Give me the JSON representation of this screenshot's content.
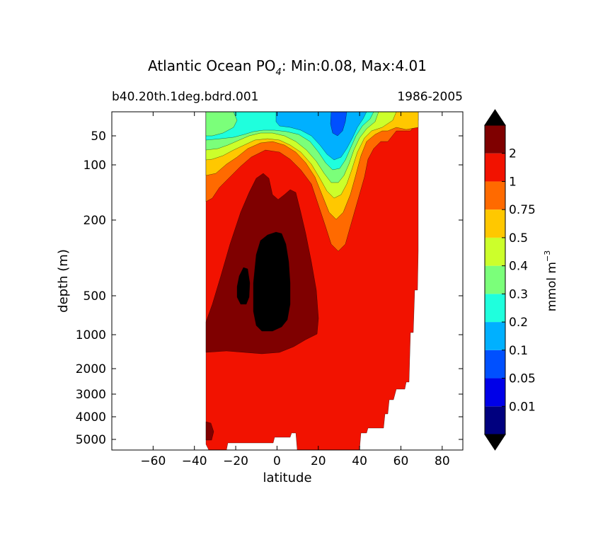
{
  "chart_data": {
    "type": "heatmap",
    "title": {
      "prefix": "Atlantic Ocean PO",
      "subscript": "4",
      "suffix": ": Min:0.08, Max:4.01"
    },
    "subtitle_left": "b40.20th.1deg.bdrd.001",
    "subtitle_right": "1986-2005",
    "xlabel": "latitude",
    "ylabel": "depth (m)",
    "xlim": [
      -80,
      90
    ],
    "xticks": [
      -60,
      -40,
      -20,
      0,
      20,
      40,
      60,
      80
    ],
    "xtick_labels": [
      "−60",
      "−40",
      "−20",
      "0",
      "20",
      "40",
      "60",
      "80"
    ],
    "y_scale": "nonlinear depth (approx. log)",
    "yticks": [
      {
        "value": 50,
        "label": "50"
      },
      {
        "value": 100,
        "label": "100"
      },
      {
        "value": 200,
        "label": "200"
      },
      {
        "value": 500,
        "label": "500"
      },
      {
        "value": 1000,
        "label": "1000"
      },
      {
        "value": 2000,
        "label": "2000"
      },
      {
        "value": 3000,
        "label": "3000"
      },
      {
        "value": 4000,
        "label": "4000"
      },
      {
        "value": 5000,
        "label": "5000"
      }
    ],
    "data_lat_range": [
      -34,
      68
    ],
    "colorbar": {
      "label_main": "mmol m",
      "label_exp": "−3",
      "levels": [
        "0.01",
        "0.05",
        "0.1",
        "0.2",
        "0.3",
        "0.4",
        "0.5",
        "0.75",
        "1",
        "2"
      ],
      "colors": [
        "#00007f",
        "#0000e8",
        "#0050ff",
        "#00b0ff",
        "#1fffdd",
        "#7bff7a",
        "#ccff2b",
        "#ffc800",
        "#ff6a00",
        "#f21200",
        "#7f0000"
      ],
      "under_color": "#000000",
      "over_color": "#000000"
    },
    "fill_levels": {
      "band_030": "#1fffdd",
      "band_040": "#7bff7a",
      "band_050": "#ccff2b",
      "band_075": "#ffc800",
      "band_100": "#ff6a00",
      "band_200": "#f21200",
      "band_over2": "#7f0000",
      "band_max": "#000000",
      "band_020": "#00b0ff",
      "band_010": "#0050ff"
    }
  }
}
